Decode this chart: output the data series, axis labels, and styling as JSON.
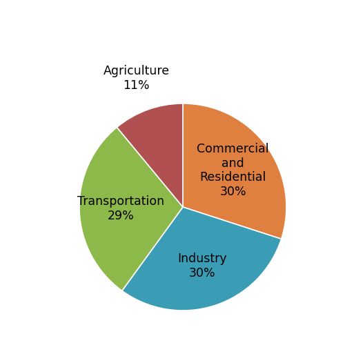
{
  "labels": [
    "Commercial\nand\nResidential",
    "Industry",
    "Transportation",
    "Agriculture"
  ],
  "pct_labels": [
    "30%",
    "30%",
    "29%",
    "11%"
  ],
  "values": [
    30,
    30,
    29,
    11
  ],
  "colors": [
    "#E08040",
    "#3A9DB5",
    "#8DB84A",
    "#B05050"
  ],
  "startangle": 90,
  "label_fontsize": 12.5,
  "background_color": "#ffffff",
  "inside_indices": [
    0,
    1,
    2
  ],
  "outside_indices": [
    3
  ],
  "inside_r": 0.6,
  "outside_r": 1.32
}
